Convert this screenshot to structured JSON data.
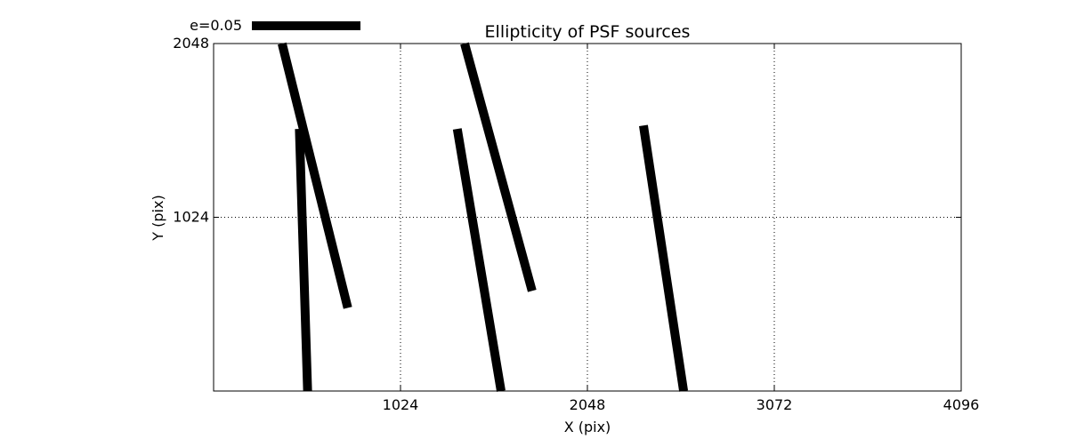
{
  "chart_data": {
    "type": "line",
    "title": "Ellipticity of PSF sources",
    "xlabel": "X (pix)",
    "ylabel": "Y (pix)",
    "xlim": [
      0,
      4096
    ],
    "ylim": [
      0,
      2048
    ],
    "xticks": [
      "1024",
      "2048",
      "3072",
      "4096"
    ],
    "yticks": [
      "1024",
      "2048"
    ],
    "grid": true,
    "grid_style": "dotted",
    "line_color": "#000000",
    "legend": {
      "label": "e=0.05",
      "position": "top-left"
    },
    "series": [
      {
        "x": [
          375,
          735
        ],
        "y": [
          2048,
          490
        ]
      },
      {
        "x": [
          470,
          515
        ],
        "y": [
          1545,
          0
        ]
      },
      {
        "x": [
          1375,
          1745
        ],
        "y": [
          2048,
          590
        ]
      },
      {
        "x": [
          1335,
          1575
        ],
        "y": [
          1545,
          0
        ]
      },
      {
        "x": [
          2355,
          2575
        ],
        "y": [
          1565,
          0
        ]
      }
    ]
  }
}
